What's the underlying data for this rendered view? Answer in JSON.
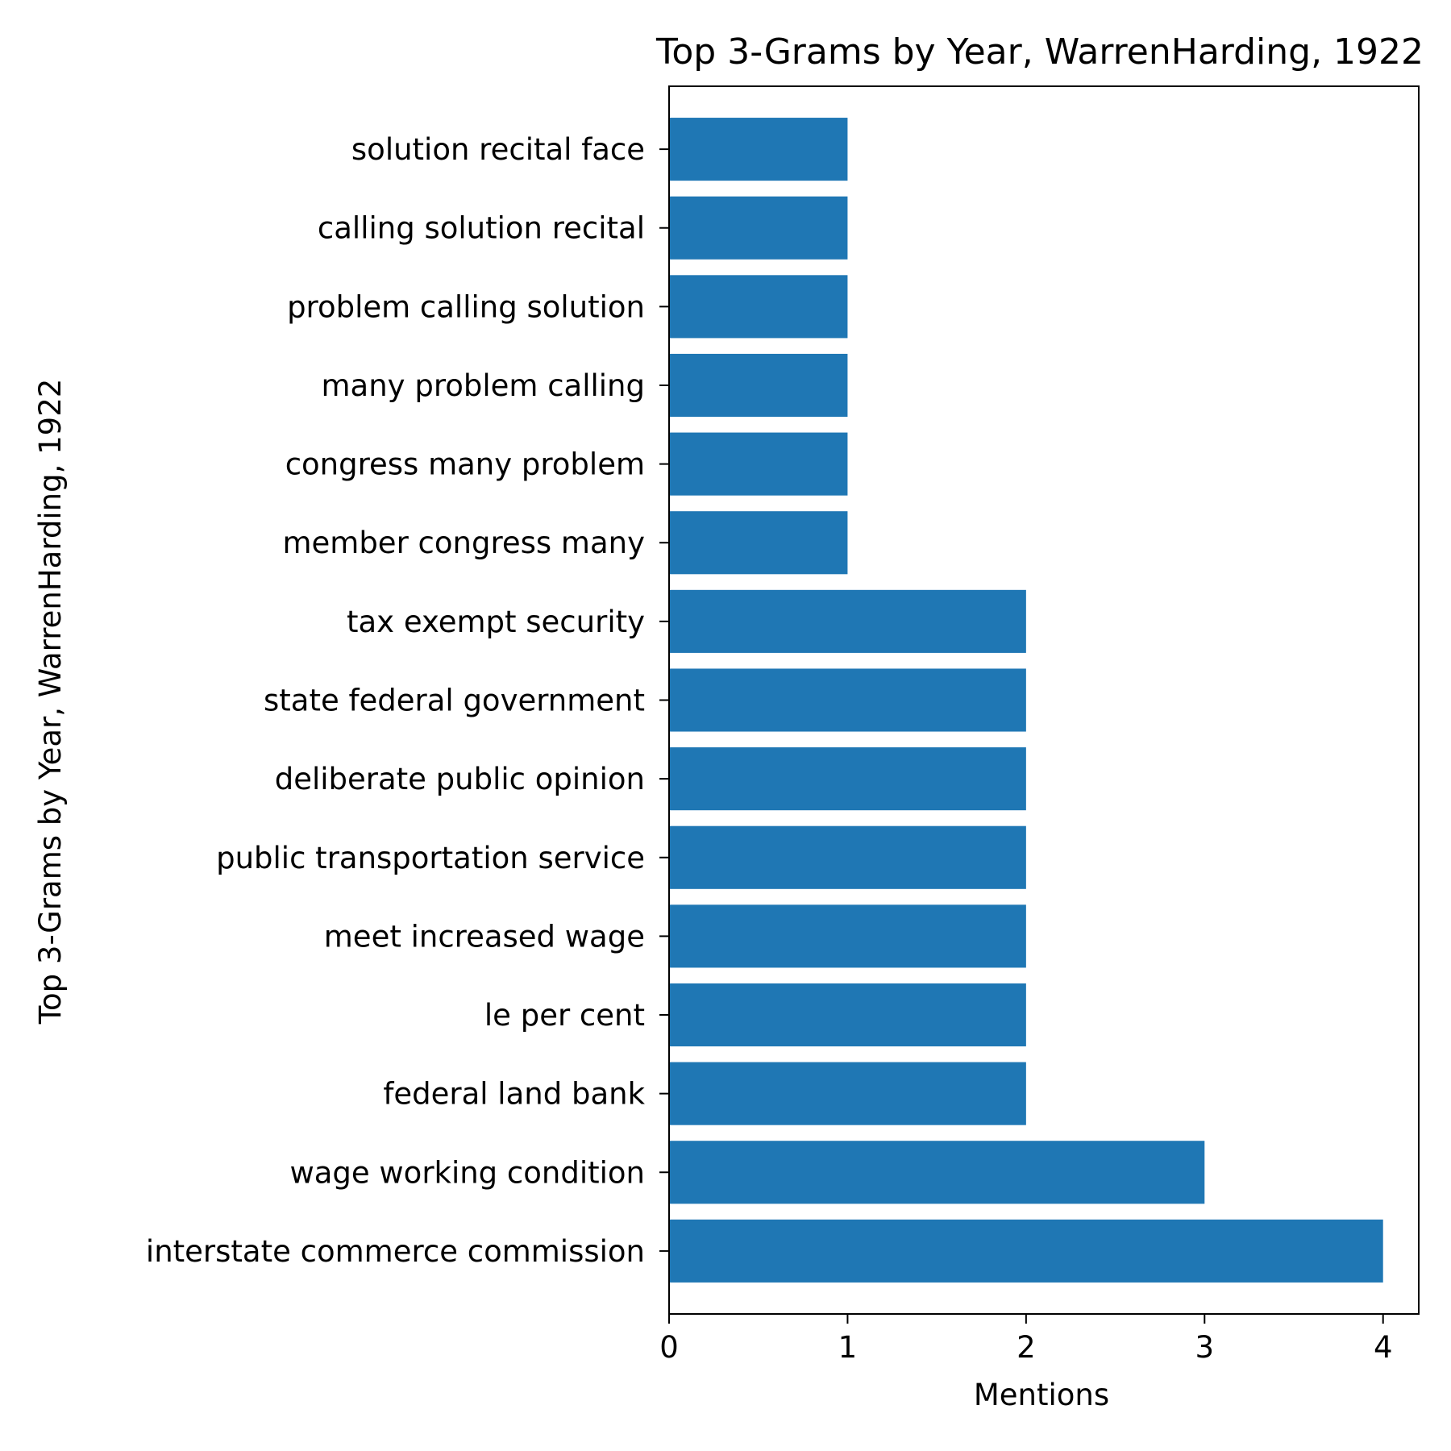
{
  "chart_data": {
    "type": "bar",
    "orientation": "horizontal",
    "title": "Top 3-Grams by Year, WarrenHarding, 1922",
    "xlabel": "Mentions",
    "ylabel": "Top 3-Grams by Year, WarrenHarding, 1922",
    "xlim": [
      0,
      4.2
    ],
    "xticks": [
      0,
      1,
      2,
      3,
      4
    ],
    "categories": [
      "interstate commerce commission",
      "wage working condition",
      "federal land bank",
      "le per cent",
      "meet increased wage",
      "public transportation service",
      "deliberate public opinion",
      "state federal government",
      "tax exempt security",
      "member congress many",
      "congress many problem",
      "many problem calling",
      "problem calling solution",
      "calling solution recital",
      "solution recital face"
    ],
    "values": [
      4,
      3,
      2,
      2,
      2,
      2,
      2,
      2,
      2,
      1,
      1,
      1,
      1,
      1,
      1
    ],
    "grid": false,
    "colors": {
      "bar": "#1f77b4"
    }
  }
}
